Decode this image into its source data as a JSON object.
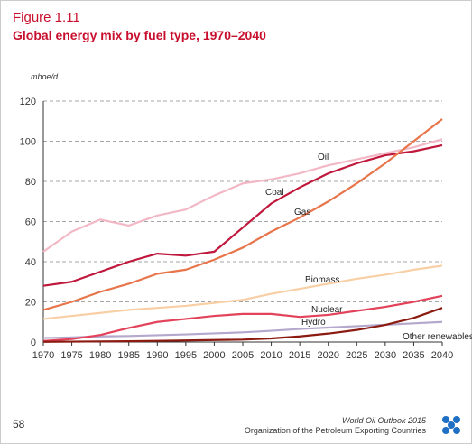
{
  "chart_data": {
    "type": "line",
    "figure_label": "Figure 1.11",
    "title": "Global energy mix by fuel type, 1970–2040",
    "y_label": "mboe/d",
    "x": [
      1970,
      1975,
      1980,
      1985,
      1990,
      1995,
      2000,
      2005,
      2010,
      2015,
      2020,
      2025,
      2030,
      2035,
      2040
    ],
    "series": [
      {
        "name": "Oil",
        "color": "#f2b8c6",
        "values": [
          45,
          55,
          61,
          58,
          63,
          66,
          73,
          79,
          81,
          84,
          88,
          91,
          94,
          97,
          101
        ]
      },
      {
        "name": "Coal",
        "color": "#c0183c",
        "values": [
          28,
          30,
          35,
          40,
          44,
          43,
          45,
          57,
          69,
          77,
          84,
          89,
          93,
          95,
          98
        ]
      },
      {
        "name": "Gas",
        "color": "#e8744a",
        "values": [
          16,
          20,
          25,
          29,
          34,
          36,
          41,
          47,
          55,
          62,
          70,
          79,
          89,
          100,
          111
        ]
      },
      {
        "name": "Biomass",
        "color": "#f8cfa4",
        "values": [
          11.5,
          13,
          14.5,
          16,
          17,
          18,
          19.5,
          21,
          24,
          26.5,
          29,
          31.5,
          33.5,
          36,
          38
        ]
      },
      {
        "name": "Nuclear",
        "color": "#e2435a",
        "values": [
          0.5,
          1.5,
          3.5,
          7,
          10,
          11.5,
          13,
          14,
          14,
          12.5,
          13.5,
          15.5,
          17.5,
          20,
          23
        ]
      },
      {
        "name": "Hydro",
        "color": "#b4a8cc",
        "values": [
          2,
          2.3,
          2.8,
          3,
          3.4,
          3.8,
          4.3,
          4.8,
          5.6,
          6.5,
          7.2,
          7.9,
          8.6,
          9.3,
          10
        ]
      },
      {
        "name": "Other renewables",
        "color": "#8b1a10",
        "values": [
          0.1,
          0.2,
          0.3,
          0.4,
          0.6,
          0.8,
          1,
          1.2,
          1.8,
          2.8,
          4.2,
          6,
          8.5,
          12,
          17
        ]
      }
    ],
    "xlim": [
      1970,
      2040
    ],
    "xticks": [
      1970,
      1975,
      1980,
      1985,
      1990,
      1995,
      2000,
      2005,
      2010,
      2015,
      2020,
      2025,
      2030,
      2035,
      2040
    ],
    "ylim": [
      0,
      120
    ],
    "yticks": [
      0,
      20,
      40,
      60,
      80,
      100,
      120
    ],
    "grid": true
  },
  "footer": {
    "page_number": "58",
    "publication": "World Oil Outlook 2015",
    "organization": "Organization of the Petroleum Exporting Countries"
  }
}
